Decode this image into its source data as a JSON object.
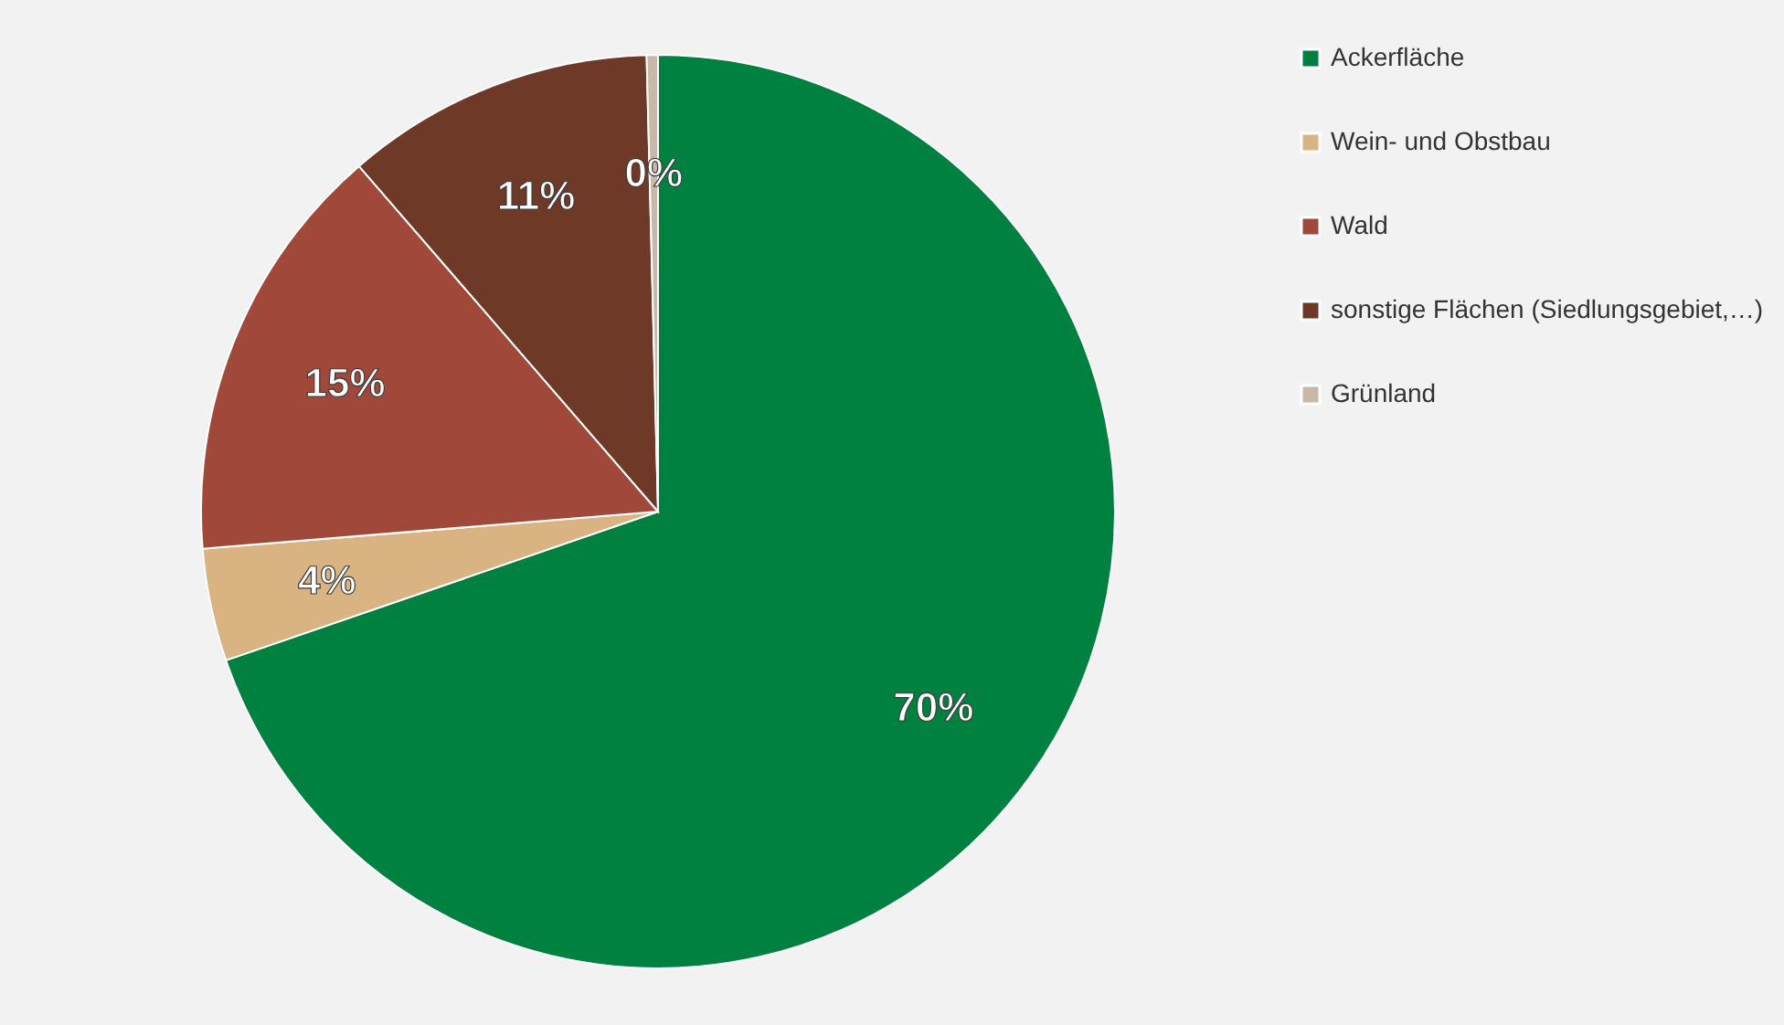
{
  "chart_data": {
    "type": "pie",
    "categories": [
      "Ackerfläche",
      "Wein- und Obstbau",
      "Wald",
      "sonstige Flächen (Siedlungsgebiet,…)",
      "Grünland"
    ],
    "values": [
      70,
      4,
      15,
      11,
      0.4
    ],
    "value_labels": [
      "70%",
      "4%",
      "15%",
      "11%",
      "0%"
    ],
    "colors": [
      "#008140",
      "#d9b382",
      "#a0493a",
      "#6e3a27",
      "#c8b8a8"
    ],
    "legend": "right"
  }
}
